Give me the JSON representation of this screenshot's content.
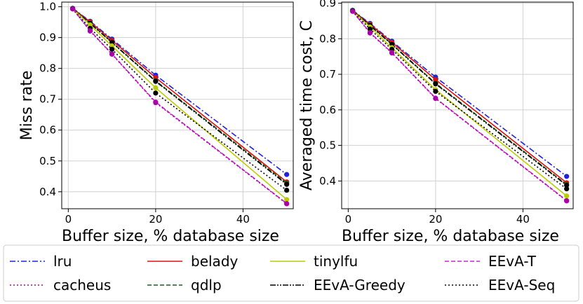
{
  "chart_data": [
    {
      "type": "line",
      "xlabel": "Buffer size, % database size",
      "ylabel": "Miss rate",
      "xlim": [
        -1.5,
        51.5
      ],
      "ylim": [
        0.345,
        1.015
      ],
      "xticks": [
        0,
        20,
        40
      ],
      "yticks": [
        0.4,
        0.5,
        0.6,
        0.7,
        0.8,
        0.9,
        1.0
      ],
      "ytick_labels": [
        "0.4",
        "0.5",
        "0.6",
        "0.7",
        "0.8",
        "0.9",
        "1.0"
      ],
      "grid": true,
      "x": [
        1,
        5,
        10,
        20,
        50
      ],
      "series": [
        {
          "name": "lru",
          "values": [
            0.995,
            0.953,
            0.895,
            0.778,
            0.456
          ]
        },
        {
          "name": "belady",
          "values": [
            0.994,
            0.951,
            0.891,
            0.77,
            0.432
          ]
        },
        {
          "name": "tinylfu",
          "values": [
            0.993,
            0.941,
            0.873,
            0.737,
            0.375
          ]
        },
        {
          "name": "EEvA-T",
          "values": [
            0.993,
            0.922,
            0.847,
            0.691,
            0.362
          ]
        },
        {
          "name": "cacheus",
          "values": [
            0.993,
            0.921,
            0.846,
            0.689,
            0.361
          ]
        },
        {
          "name": "qdlp",
          "values": [
            0.994,
            0.947,
            0.885,
            0.76,
            0.428
          ]
        },
        {
          "name": "EEvA-Greedy",
          "values": [
            0.994,
            0.946,
            0.884,
            0.758,
            0.424
          ]
        },
        {
          "name": "EEvA-Seq",
          "values": [
            0.993,
            0.93,
            0.862,
            0.72,
            0.405
          ]
        }
      ]
    },
    {
      "type": "line",
      "xlabel": "Buffer size, % database size",
      "ylabel": "Averaged time cost, C",
      "xlim": [
        -1.5,
        51.5
      ],
      "ylim": [
        0.322,
        0.903
      ],
      "xticks": [
        0,
        20,
        40
      ],
      "yticks": [
        0.4,
        0.5,
        0.6,
        0.7,
        0.8,
        0.9
      ],
      "ytick_labels": [
        "0.4",
        "0.5",
        "0.6",
        "0.7",
        "0.8",
        "0.9"
      ],
      "grid": true,
      "x": [
        1,
        5,
        10,
        20,
        50
      ],
      "series": [
        {
          "name": "lru",
          "values": [
            0.88,
            0.843,
            0.793,
            0.692,
            0.413
          ]
        },
        {
          "name": "belady",
          "values": [
            0.879,
            0.841,
            0.79,
            0.685,
            0.395
          ]
        },
        {
          "name": "tinylfu",
          "values": [
            0.878,
            0.833,
            0.775,
            0.657,
            0.358
          ]
        },
        {
          "name": "EEvA-T",
          "values": [
            0.877,
            0.817,
            0.761,
            0.633,
            0.345
          ]
        },
        {
          "name": "cacheus",
          "values": [
            0.877,
            0.816,
            0.76,
            0.632,
            0.344
          ]
        },
        {
          "name": "qdlp",
          "values": [
            0.879,
            0.838,
            0.785,
            0.675,
            0.39
          ]
        },
        {
          "name": "EEvA-Greedy",
          "values": [
            0.879,
            0.837,
            0.784,
            0.673,
            0.388
          ]
        },
        {
          "name": "EEvA-Seq",
          "values": [
            0.878,
            0.827,
            0.77,
            0.652,
            0.378
          ]
        }
      ]
    }
  ],
  "legend": {
    "placement": "bottom",
    "entries": [
      {
        "name": "lru",
        "color": "#2020dd",
        "dash": "dashdot"
      },
      {
        "name": "belady",
        "color": "#dd1111",
        "dash": "solid"
      },
      {
        "name": "tinylfu",
        "color": "#bbcc00",
        "dash": "solid"
      },
      {
        "name": "EEvA-T",
        "color": "#cc22cc",
        "dash": "dashed"
      },
      {
        "name": "cacheus",
        "color": "#aa00aa",
        "dash": "dotted"
      },
      {
        "name": "qdlp",
        "color": "#116611",
        "dash": "dashed"
      },
      {
        "name": "EEvA-Greedy",
        "color": "#000000",
        "dash": "dashdotdot"
      },
      {
        "name": "EEvA-Seq",
        "color": "#000000",
        "dash": "dotted"
      }
    ]
  }
}
